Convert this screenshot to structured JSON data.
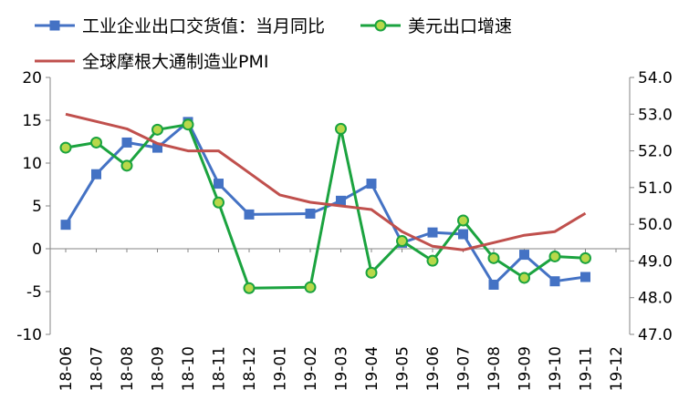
{
  "chart_data": {
    "type": "line",
    "categories": [
      "18-06",
      "18-07",
      "18-08",
      "18-09",
      "18-10",
      "18-11",
      "18-12",
      "19-01",
      "19-02",
      "19-03",
      "19-04",
      "19-05",
      "19-06",
      "19-07",
      "19-08",
      "19-09",
      "19-10",
      "19-11",
      "19-12"
    ],
    "series": [
      {
        "name": "工业企业出口交货值：当月同比",
        "axis": "left",
        "color": "#4472C4",
        "marker": "square",
        "values": [
          2.8,
          8.7,
          12.4,
          11.8,
          14.8,
          7.6,
          4.0,
          null,
          4.1,
          5.6,
          7.6,
          0.7,
          1.9,
          1.7,
          -4.2,
          -0.7,
          -3.8,
          -3.3,
          null
        ]
      },
      {
        "name": "美元出口增速",
        "axis": "left",
        "color": "#1BA33F",
        "marker": "circle",
        "marker_fill": "#B8D84A",
        "values": [
          11.8,
          12.4,
          9.7,
          13.9,
          14.5,
          5.4,
          -4.6,
          null,
          -4.5,
          14.0,
          -2.8,
          0.9,
          -1.4,
          3.3,
          -1.1,
          -3.4,
          -0.9,
          -1.1,
          null
        ]
      },
      {
        "name": "全球摩根大通制造业PMI",
        "axis": "right",
        "color": "#C0504D",
        "marker": "none",
        "values": [
          53.0,
          52.8,
          52.6,
          52.2,
          52.0,
          52.0,
          51.4,
          50.8,
          50.6,
          50.5,
          50.4,
          49.8,
          49.4,
          49.3,
          49.5,
          49.7,
          49.8,
          50.3,
          null
        ]
      }
    ],
    "y_left": {
      "range": [
        -10,
        20
      ],
      "ticks": [
        "20",
        "15",
        "10",
        "5",
        "0",
        "-5",
        "-10"
      ],
      "negative_color": "#FF0000"
    },
    "y_right": {
      "range": [
        47.0,
        54.0
      ],
      "ticks": [
        "54.0",
        "53.0",
        "52.0",
        "51.0",
        "50.0",
        "49.0",
        "48.0",
        "47.0"
      ]
    },
    "grid": false,
    "legend_position": "top"
  }
}
